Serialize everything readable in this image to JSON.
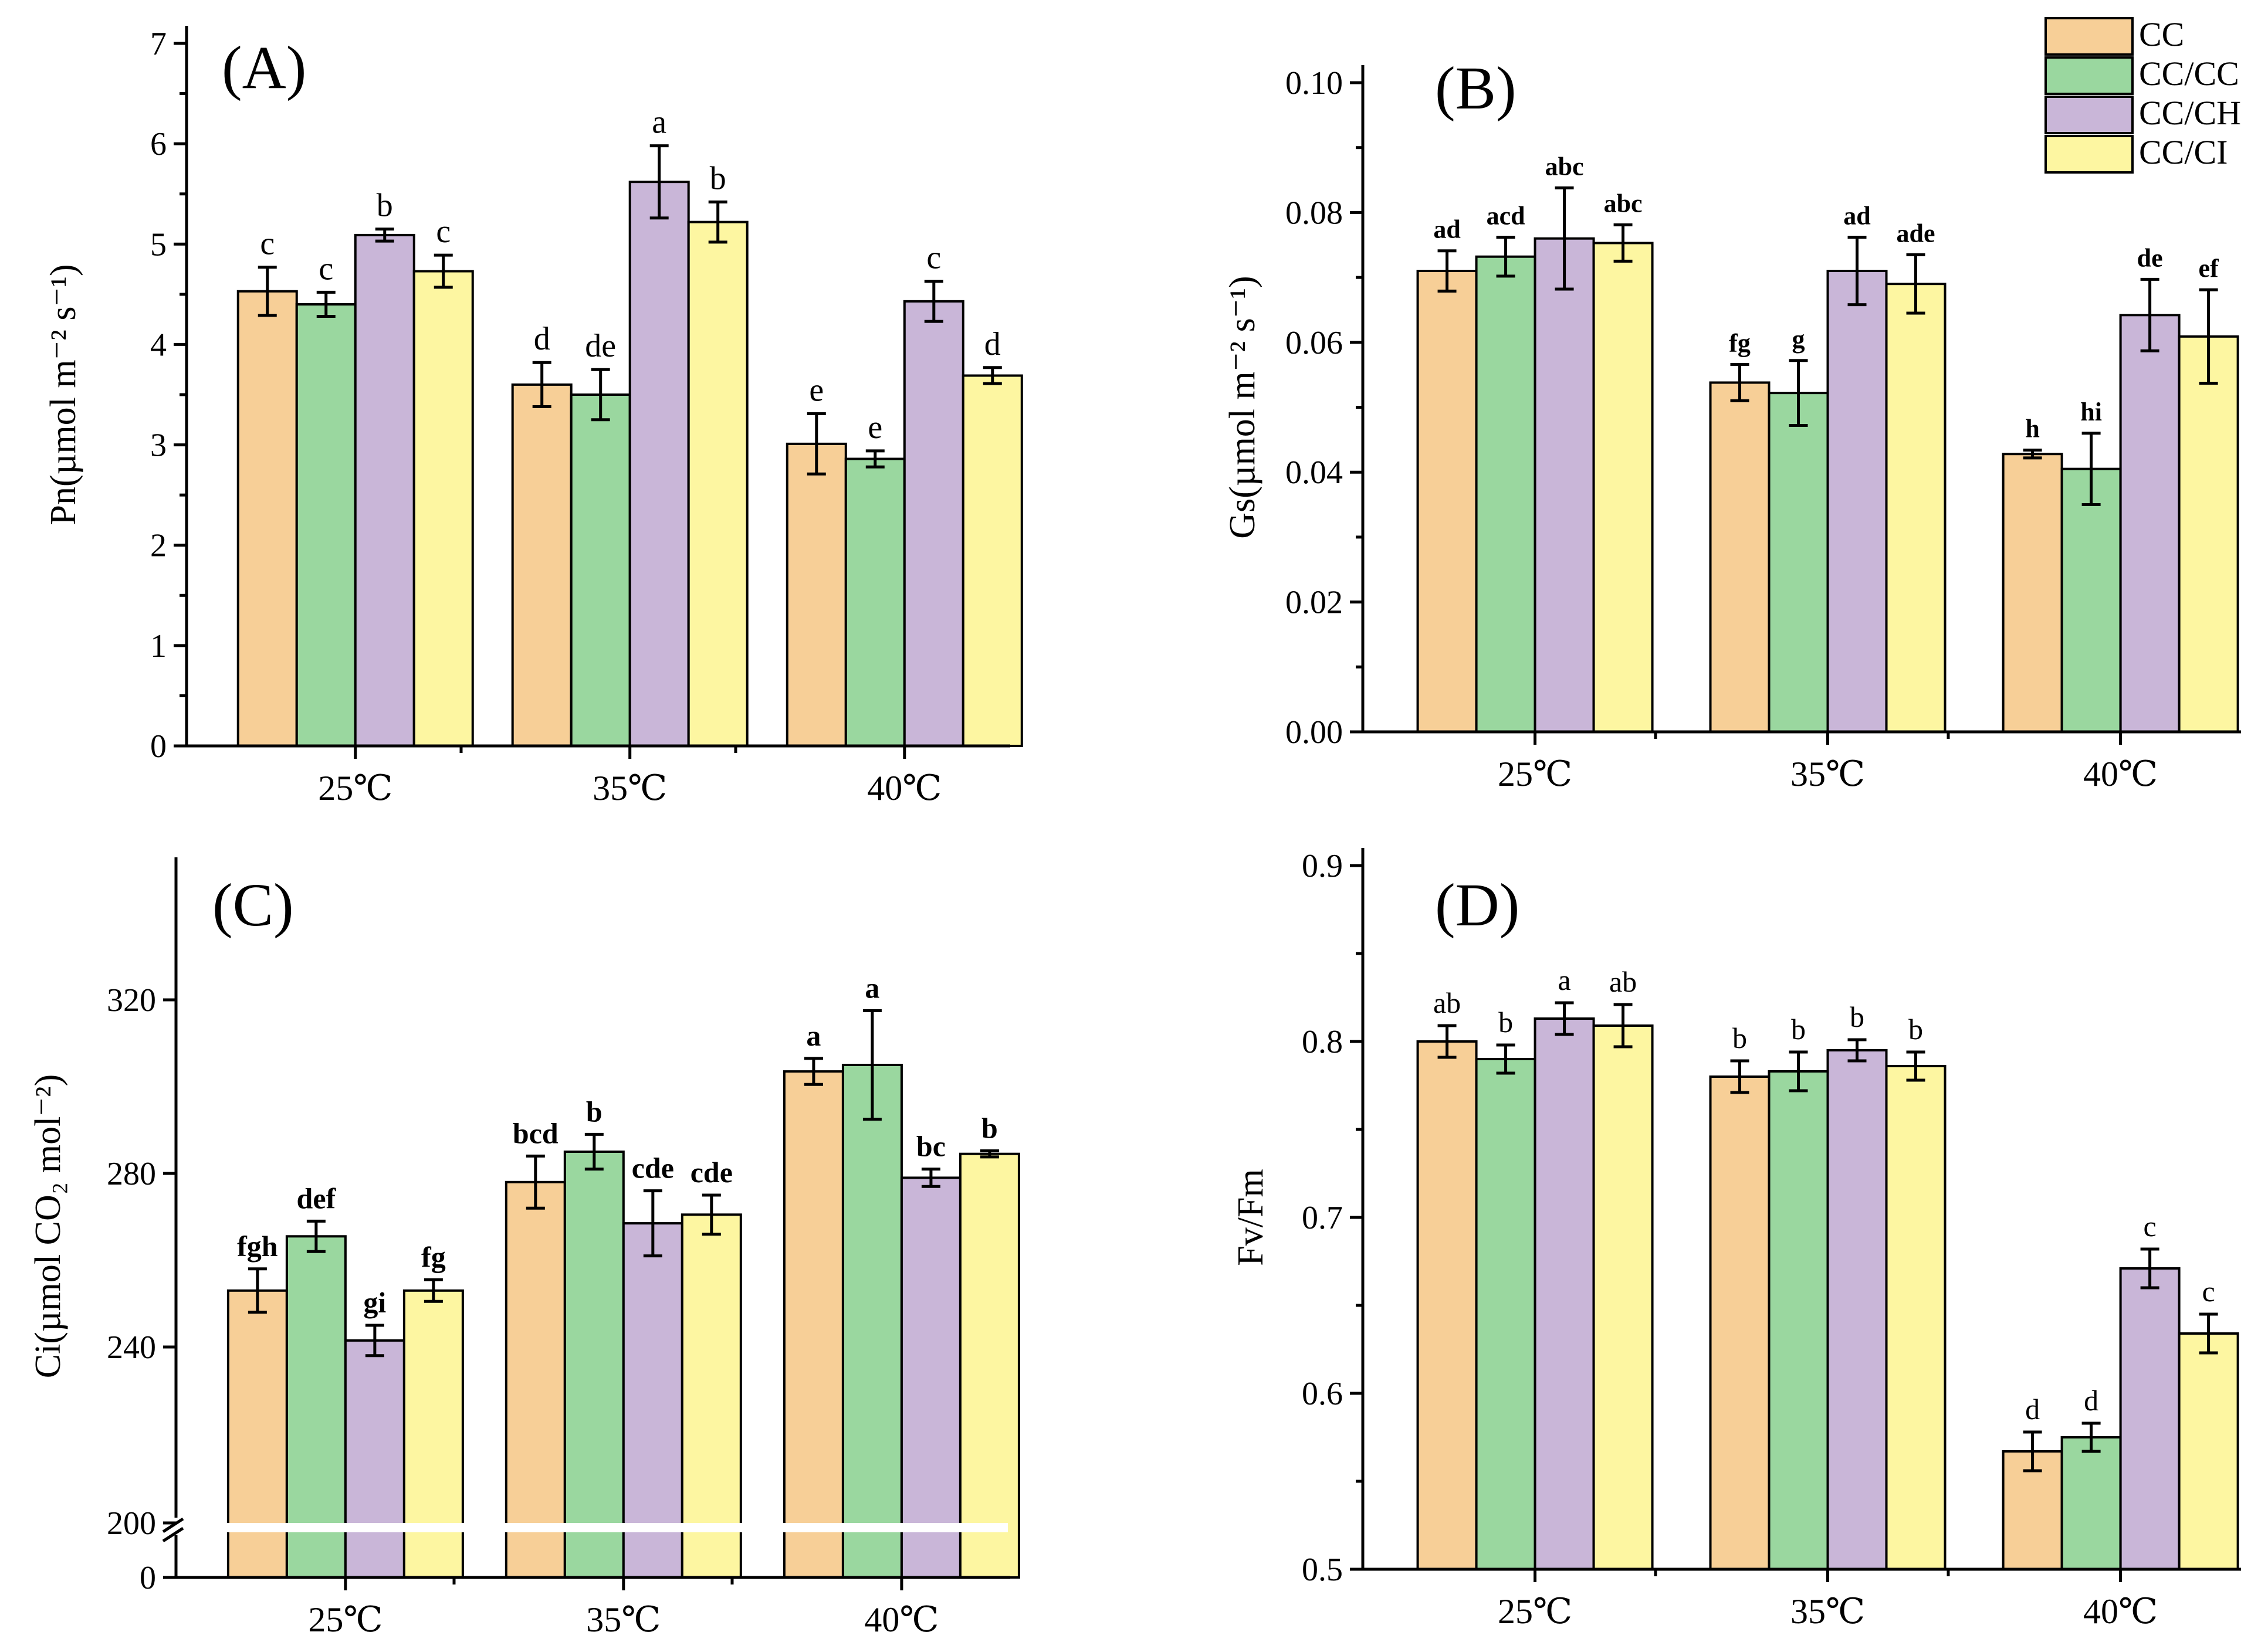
{
  "colors": {
    "CC": "#f7cf97",
    "CC/CC": "#9ad79f",
    "CC/CH": "#c9b6d8",
    "CC/CI": "#fdf6a1"
  },
  "legend": [
    "CC",
    "CC/CC",
    "CC/CH",
    "CC/CI"
  ],
  "chart_data": [
    {
      "type": "bar",
      "panel": "(A)",
      "ylabel": "Pn(µmol m⁻² s⁻¹)",
      "categories": [
        "25℃",
        "35℃",
        "40℃"
      ],
      "ylim": [
        0,
        7
      ],
      "yticks": [
        "0",
        "1",
        "2",
        "3",
        "4",
        "5",
        "6",
        "7"
      ],
      "letters_bold": false,
      "series": [
        {
          "name": "CC",
          "values": [
            4.53,
            3.6,
            3.01
          ],
          "errors": [
            0.24,
            0.22,
            0.3
          ],
          "letters": [
            "c",
            "d",
            "e"
          ]
        },
        {
          "name": "CC/CC",
          "values": [
            4.4,
            3.5,
            2.86
          ],
          "errors": [
            0.12,
            0.25,
            0.08
          ],
          "letters": [
            "c",
            "de",
            "e"
          ]
        },
        {
          "name": "CC/CH",
          "values": [
            5.09,
            5.62,
            4.43
          ],
          "errors": [
            0.06,
            0.36,
            0.2
          ],
          "letters": [
            "b",
            "a",
            "c"
          ]
        },
        {
          "name": "CC/CI",
          "values": [
            4.73,
            5.22,
            3.69
          ],
          "errors": [
            0.16,
            0.2,
            0.08
          ],
          "letters": [
            "c",
            "b",
            "d"
          ]
        }
      ]
    },
    {
      "type": "bar",
      "panel": "(B)",
      "ylabel": "Gs(µmol m⁻² s⁻¹)",
      "categories": [
        "25℃",
        "35℃",
        "40℃"
      ],
      "ylim": [
        0,
        0.1
      ],
      "yticks": [
        "0.00",
        "0.02",
        "0.04",
        "0.06",
        "0.08",
        "0.10"
      ],
      "letters_bold": true,
      "series": [
        {
          "name": "CC",
          "values": [
            0.071,
            0.0538,
            0.0428
          ],
          "errors": [
            0.0031,
            0.0028,
            0.0006
          ],
          "letters": [
            "ad",
            "fg",
            "h"
          ]
        },
        {
          "name": "CC/CC",
          "values": [
            0.0732,
            0.0522,
            0.0405
          ],
          "errors": [
            0.003,
            0.005,
            0.0055
          ],
          "letters": [
            "acd",
            "g",
            "hi"
          ]
        },
        {
          "name": "CC/CH",
          "values": [
            0.076,
            0.071,
            0.0642
          ],
          "errors": [
            0.0078,
            0.0052,
            0.0055
          ],
          "letters": [
            "abc",
            "ad",
            "de"
          ]
        },
        {
          "name": "CC/CI",
          "values": [
            0.0753,
            0.069,
            0.0609
          ],
          "errors": [
            0.0028,
            0.0045,
            0.0072
          ],
          "letters": [
            "abc",
            "ade",
            "ef"
          ]
        }
      ]
    },
    {
      "type": "bar",
      "panel": "(C)",
      "ylabel": "Ci(µmol CO₂ mol⁻²)",
      "categories": [
        "25℃",
        "35℃",
        "40℃"
      ],
      "ylim": [
        0,
        350
      ],
      "axis_break": [
        200,
        226
      ],
      "yticks": [
        "0",
        "200",
        "240",
        "280",
        "320"
      ],
      "letters_bold": true,
      "series": [
        {
          "name": "CC",
          "values": [
            253,
            278,
            303.5
          ],
          "errors": [
            5,
            6,
            3
          ],
          "letters": [
            "fgh",
            "bcd",
            "a"
          ]
        },
        {
          "name": "CC/CC",
          "values": [
            265.5,
            285,
            305
          ],
          "errors": [
            3.5,
            4,
            12.5
          ],
          "letters": [
            "def",
            "b",
            "a"
          ]
        },
        {
          "name": "CC/CH",
          "values": [
            241.5,
            268.5,
            279
          ],
          "errors": [
            3.5,
            7.5,
            2
          ],
          "letters": [
            "gi",
            "cde",
            "bc"
          ]
        },
        {
          "name": "CC/CI",
          "values": [
            253,
            270.5,
            284.5
          ],
          "errors": [
            2.5,
            4.5,
            0.7
          ],
          "letters": [
            "fg",
            "cde",
            "b"
          ]
        }
      ]
    },
    {
      "type": "bar",
      "panel": "(D)",
      "ylabel": "Fv/Fm",
      "categories": [
        "25℃",
        "35℃",
        "40℃"
      ],
      "ylim": [
        0.5,
        0.9
      ],
      "yticks": [
        "0.5",
        "0.6",
        "0.7",
        "0.8",
        "0.9"
      ],
      "letters_bold": false,
      "series": [
        {
          "name": "CC",
          "values": [
            0.8,
            0.78,
            0.567
          ],
          "errors": [
            0.009,
            0.009,
            0.011
          ],
          "letters": [
            "ab",
            "b",
            "d"
          ]
        },
        {
          "name": "CC/CC",
          "values": [
            0.79,
            0.783,
            0.575
          ],
          "errors": [
            0.008,
            0.011,
            0.008
          ],
          "letters": [
            "b",
            "b",
            "d"
          ]
        },
        {
          "name": "CC/CH",
          "values": [
            0.813,
            0.795,
            0.671
          ],
          "errors": [
            0.009,
            0.006,
            0.011
          ],
          "letters": [
            "a",
            "b",
            "c"
          ]
        },
        {
          "name": "CC/CI",
          "values": [
            0.809,
            0.786,
            0.634
          ],
          "errors": [
            0.012,
            0.008,
            0.011
          ],
          "letters": [
            "ab",
            "b",
            "c"
          ]
        }
      ]
    }
  ]
}
